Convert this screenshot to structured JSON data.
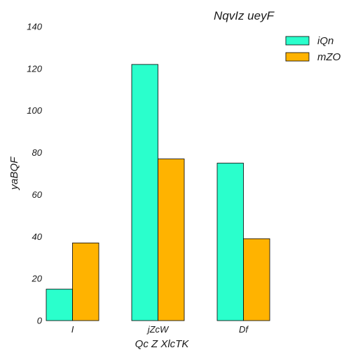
{
  "chart_data": {
    "type": "bar",
    "title": "NqvIz ueyF",
    "xlabel": "Qc Z XlcTK",
    "ylabel": "yaBQF",
    "categories": [
      "I",
      "jZcW",
      "Df"
    ],
    "series": [
      {
        "name": "iQn",
        "values": [
          15,
          122,
          75
        ],
        "color": "#2affcc"
      },
      {
        "name": "mZO",
        "values": [
          37,
          77,
          39
        ],
        "color": "#ffb300"
      }
    ],
    "ylim": [
      0,
      140
    ],
    "yticks": [
      0,
      20,
      40,
      60,
      80,
      100,
      120,
      140
    ],
    "ytick_labels": [
      "0",
      "20",
      "40",
      "60",
      "80",
      "100",
      "120",
      "140"
    ],
    "grid": false,
    "legend_position": "top-right"
  }
}
